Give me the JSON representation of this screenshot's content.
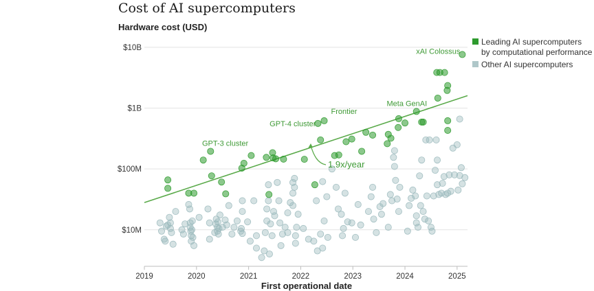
{
  "chart_data": {
    "type": "scatter",
    "title": "Cost of AI supercomputers",
    "ylabel": "Hardware cost (USD)",
    "xlabel": "First operational date",
    "xlim": [
      2019.0,
      2025.2
    ],
    "ylim_log10": [
      6.4,
      10.1
    ],
    "y_scale": "log",
    "x_ticks": [
      2019,
      2020,
      2021,
      2022,
      2023,
      2024,
      2025
    ],
    "y_ticks": [
      {
        "value": 10000000,
        "label": "$10M"
      },
      {
        "value": 100000000,
        "label": "$100M"
      },
      {
        "value": 1000000000,
        "label": "$1B"
      },
      {
        "value": 10000000000,
        "label": "$10B"
      }
    ],
    "colors": {
      "leading": "#2e9a2e",
      "other": "#9bb9bc",
      "trend": "#5aaa4a",
      "annotation": "#3f9a36"
    },
    "legend": {
      "placement": "top-right",
      "entries": [
        {
          "key": "leading",
          "lines": [
            "Leading AI supercomputers",
            "by computational performance"
          ]
        },
        {
          "key": "other",
          "lines": [
            "Other AI supercomputers"
          ]
        }
      ]
    },
    "trend": {
      "x": [
        2019.0,
        2025.2
      ],
      "y": [
        28000000,
        1600000000
      ],
      "label": "1.9x/year"
    },
    "annotations": [
      {
        "text": "xAI Colossus",
        "x": 2025.1,
        "y": 7600000000
      },
      {
        "text": "Meta GenAI",
        "x": 2024.2,
        "y": 880000000
      },
      {
        "text": "Frontier",
        "x": 2022.45,
        "y": 620000000
      },
      {
        "text": "GPT-4 cluster",
        "x": 2022.33,
        "y": 560000000
      },
      {
        "text": "GPT-3 cluster",
        "x": 2020.2,
        "y": 195000000
      }
    ],
    "series": [
      {
        "name": "Leading AI supercomputers by computational performance",
        "key": "leading",
        "points": [
          [
            2019.45,
            66000000
          ],
          [
            2019.45,
            48000000
          ],
          [
            2019.85,
            40000000
          ],
          [
            2019.95,
            40000000
          ],
          [
            2020.13,
            140000000
          ],
          [
            2020.27,
            195000000
          ],
          [
            2020.29,
            77000000
          ],
          [
            2020.48,
            61000000
          ],
          [
            2020.56,
            39000000
          ],
          [
            2020.87,
            103000000
          ],
          [
            2020.91,
            124000000
          ],
          [
            2021.05,
            166000000
          ],
          [
            2021.34,
            155000000
          ],
          [
            2021.39,
            38000000
          ],
          [
            2021.46,
            185000000
          ],
          [
            2021.47,
            152000000
          ],
          [
            2021.52,
            147000000
          ],
          [
            2021.67,
            145000000
          ],
          [
            2022.07,
            144000000
          ],
          [
            2022.27,
            55000000
          ],
          [
            2022.38,
            300000000
          ],
          [
            2022.33,
            560000000
          ],
          [
            2022.45,
            620000000
          ],
          [
            2022.65,
            166000000
          ],
          [
            2022.73,
            170000000
          ],
          [
            2022.87,
            280000000
          ],
          [
            2022.98,
            310000000
          ],
          [
            2023.17,
            195000000
          ],
          [
            2023.25,
            400000000
          ],
          [
            2023.38,
            360000000
          ],
          [
            2023.66,
            260000000
          ],
          [
            2023.68,
            370000000
          ],
          [
            2023.73,
            320000000
          ],
          [
            2023.87,
            480000000
          ],
          [
            2023.88,
            670000000
          ],
          [
            2024.0,
            570000000
          ],
          [
            2024.22,
            880000000
          ],
          [
            2024.32,
            590000000
          ],
          [
            2024.35,
            590000000
          ],
          [
            2024.61,
            3850000000
          ],
          [
            2024.67,
            3850000000
          ],
          [
            2024.76,
            3850000000
          ],
          [
            2024.63,
            1460000000
          ],
          [
            2024.82,
            2350000000
          ],
          [
            2024.81,
            1950000000
          ],
          [
            2024.82,
            620000000
          ],
          [
            2024.82,
            430000000
          ],
          [
            2025.1,
            7600000000
          ]
        ]
      },
      {
        "name": "Other AI supercomputers",
        "key": "other",
        "points": [
          [
            2019.3,
            13000000
          ],
          [
            2019.33,
            9500000
          ],
          [
            2019.38,
            7000000
          ],
          [
            2019.42,
            11500000
          ],
          [
            2019.48,
            16000000
          ],
          [
            2019.5,
            13000000
          ],
          [
            2019.52,
            9000000
          ],
          [
            2019.4,
            6500000
          ],
          [
            2019.55,
            5800000
          ],
          [
            2019.45,
            12000000
          ],
          [
            2019.5,
            10500000
          ],
          [
            2019.6,
            20000000
          ],
          [
            2019.72,
            10000000
          ],
          [
            2019.75,
            8500000
          ],
          [
            2019.78,
            12500000
          ],
          [
            2019.85,
            26000000
          ],
          [
            2019.87,
            22000000
          ],
          [
            2019.88,
            13000000
          ],
          [
            2019.88,
            11000000
          ],
          [
            2019.89,
            9500000
          ],
          [
            2019.9,
            8000000
          ],
          [
            2019.9,
            6500000
          ],
          [
            2019.91,
            10000000
          ],
          [
            2019.92,
            14000000
          ],
          [
            2019.93,
            7500000
          ],
          [
            2019.95,
            5500000
          ],
          [
            2020.05,
            16000000
          ],
          [
            2020.22,
            22000000
          ],
          [
            2020.25,
            13000000
          ],
          [
            2020.25,
            7000000
          ],
          [
            2020.35,
            9000000
          ],
          [
            2020.37,
            12500000
          ],
          [
            2020.38,
            15000000
          ],
          [
            2020.4,
            11000000
          ],
          [
            2020.4,
            9500000
          ],
          [
            2020.41,
            13500000
          ],
          [
            2020.42,
            8500000
          ],
          [
            2020.43,
            10500000
          ],
          [
            2020.45,
            17500000
          ],
          [
            2020.5,
            11000000
          ],
          [
            2020.55,
            14500000
          ],
          [
            2020.58,
            12000000
          ],
          [
            2020.62,
            25000000
          ],
          [
            2020.68,
            8500000
          ],
          [
            2020.72,
            11000000
          ],
          [
            2020.78,
            14000000
          ],
          [
            2020.85,
            9500000
          ],
          [
            2020.86,
            10500000
          ],
          [
            2020.88,
            8700000
          ],
          [
            2020.88,
            20000000
          ],
          [
            2020.88,
            30000000
          ],
          [
            2020.98,
            13500000
          ],
          [
            2021.03,
            6500000
          ],
          [
            2021.1,
            30000000
          ],
          [
            2021.15,
            8000000
          ],
          [
            2021.15,
            5000000
          ],
          [
            2021.25,
            3500000
          ],
          [
            2021.3,
            4500000
          ],
          [
            2021.32,
            9000000
          ],
          [
            2021.35,
            14000000
          ],
          [
            2021.35,
            22000000
          ],
          [
            2021.38,
            55000000
          ],
          [
            2021.38,
            30000000
          ],
          [
            2021.4,
            4000000
          ],
          [
            2021.42,
            12500000
          ],
          [
            2021.45,
            8000000
          ],
          [
            2021.48,
            20000000
          ],
          [
            2021.5,
            17000000
          ],
          [
            2021.55,
            60000000
          ],
          [
            2021.58,
            30000000
          ],
          [
            2021.6,
            13000000
          ],
          [
            2021.62,
            5500000
          ],
          [
            2021.65,
            8500000
          ],
          [
            2021.7,
            11000000
          ],
          [
            2021.75,
            19000000
          ],
          [
            2021.75,
            9000000
          ],
          [
            2021.8,
            28000000
          ],
          [
            2021.85,
            40000000
          ],
          [
            2021.85,
            25000000
          ],
          [
            2021.85,
            60000000
          ],
          [
            2021.88,
            70000000
          ],
          [
            2021.88,
            50000000
          ],
          [
            2021.9,
            8000000
          ],
          [
            2021.9,
            6000000
          ],
          [
            2021.92,
            11000000
          ],
          [
            2021.95,
            18000000
          ],
          [
            2022.05,
            10500000
          ],
          [
            2022.15,
            7000000
          ],
          [
            2022.25,
            6500000
          ],
          [
            2022.3,
            30000000
          ],
          [
            2022.32,
            4500000
          ],
          [
            2022.38,
            8500000
          ],
          [
            2022.42,
            62000000
          ],
          [
            2022.42,
            5000000
          ],
          [
            2022.45,
            14000000
          ],
          [
            2022.5,
            35000000
          ],
          [
            2022.52,
            7500000
          ],
          [
            2022.6,
            100000000
          ],
          [
            2022.68,
            50000000
          ],
          [
            2022.72,
            22000000
          ],
          [
            2022.78,
            18000000
          ],
          [
            2022.8,
            8000000
          ],
          [
            2022.82,
            10500000
          ],
          [
            2022.85,
            40000000
          ],
          [
            2022.9,
            13500000
          ],
          [
            2022.98,
            13000000
          ],
          [
            2023.05,
            7500000
          ],
          [
            2023.1,
            26000000
          ],
          [
            2023.15,
            12000000
          ],
          [
            2023.3,
            20000000
          ],
          [
            2023.35,
            35000000
          ],
          [
            2023.38,
            50000000
          ],
          [
            2023.4,
            15000000
          ],
          [
            2023.45,
            9000000
          ],
          [
            2023.52,
            24000000
          ],
          [
            2023.55,
            18000000
          ],
          [
            2023.58,
            27000000
          ],
          [
            2023.68,
            11000000
          ],
          [
            2023.72,
            38000000
          ],
          [
            2023.75,
            30000000
          ],
          [
            2023.78,
            155000000
          ],
          [
            2023.8,
            200000000
          ],
          [
            2023.8,
            110000000
          ],
          [
            2023.82,
            65000000
          ],
          [
            2023.85,
            32000000
          ],
          [
            2023.88,
            20000000
          ],
          [
            2023.9,
            50000000
          ],
          [
            2024.05,
            9500000
          ],
          [
            2024.08,
            25000000
          ],
          [
            2024.12,
            33000000
          ],
          [
            2024.15,
            45000000
          ],
          [
            2024.2,
            36000000
          ],
          [
            2024.22,
            17000000
          ],
          [
            2024.22,
            13000000
          ],
          [
            2024.25,
            11000000
          ],
          [
            2024.28,
            77000000
          ],
          [
            2024.3,
            25000000
          ],
          [
            2024.32,
            140000000
          ],
          [
            2024.35,
            20000000
          ],
          [
            2024.38,
            15000000
          ],
          [
            2024.4,
            300000000
          ],
          [
            2024.42,
            36000000
          ],
          [
            2024.45,
            14000000
          ],
          [
            2024.47,
            300000000
          ],
          [
            2024.5,
            11000000
          ],
          [
            2024.52,
            9500000
          ],
          [
            2024.55,
            36000000
          ],
          [
            2024.58,
            95000000
          ],
          [
            2024.6,
            300000000
          ],
          [
            2024.62,
            55000000
          ],
          [
            2024.62,
            140000000
          ],
          [
            2024.65,
            38000000
          ],
          [
            2024.7,
            40000000
          ],
          [
            2024.72,
            58000000
          ],
          [
            2024.75,
            75000000
          ],
          [
            2024.78,
            38000000
          ],
          [
            2024.82,
            40000000
          ],
          [
            2024.85,
            80000000
          ],
          [
            2024.88,
            43000000
          ],
          [
            2024.92,
            220000000
          ],
          [
            2024.95,
            80000000
          ],
          [
            2025.0,
            250000000
          ],
          [
            2025.02,
            45000000
          ],
          [
            2025.05,
            78000000
          ],
          [
            2025.08,
            105000000
          ],
          [
            2025.1,
            57000000
          ],
          [
            2025.15,
            72000000
          ],
          [
            2025.05,
            660000000
          ]
        ]
      }
    ]
  }
}
